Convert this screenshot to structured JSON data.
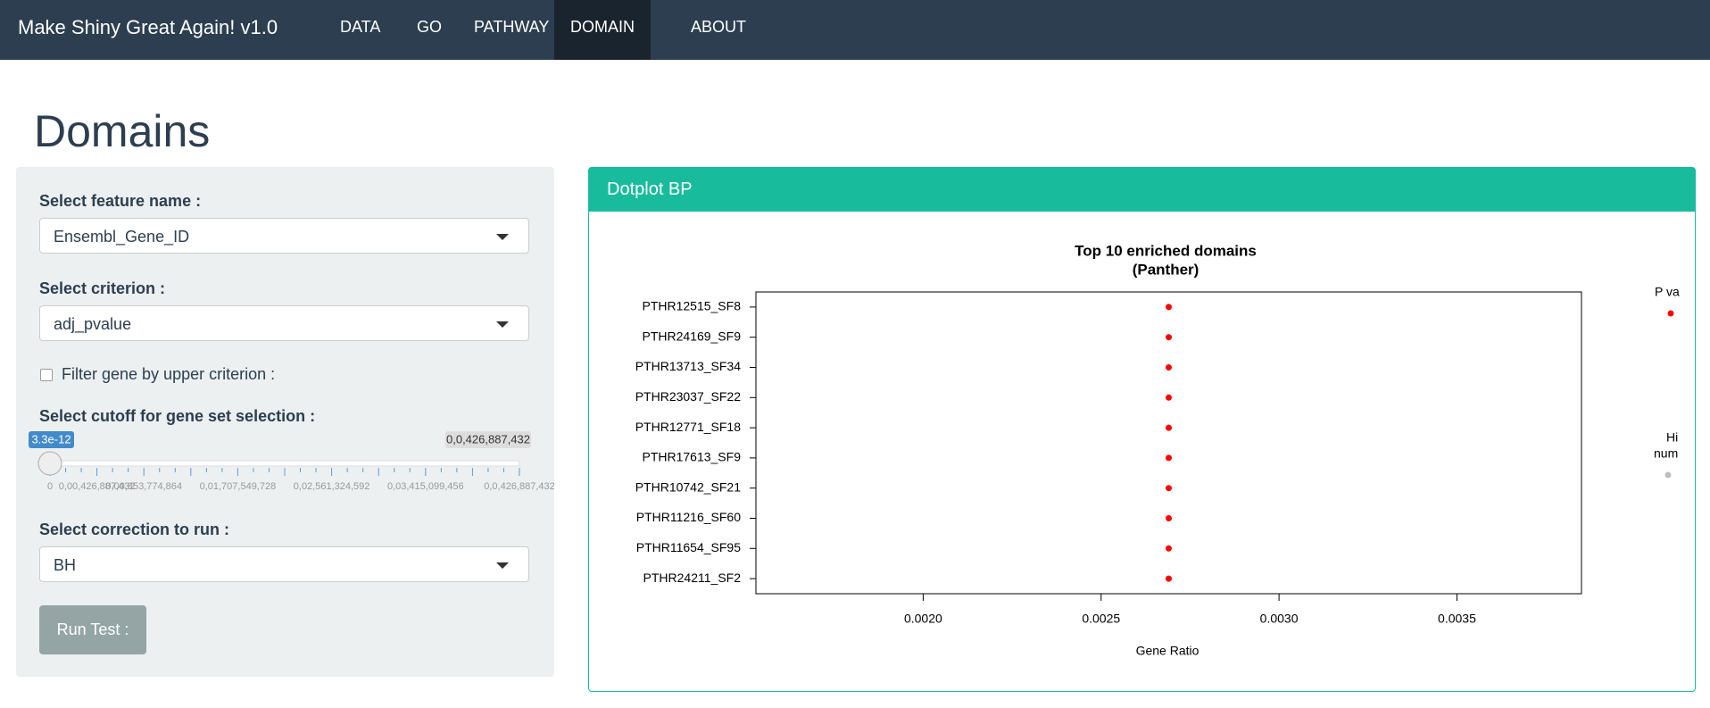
{
  "navbar": {
    "brand": "Make Shiny Great Again! v1.0",
    "items": [
      "DATA",
      "GO",
      "PATHWAY",
      "DOMAIN",
      "ABOUT"
    ],
    "active": "DOMAIN"
  },
  "heading": "Domains",
  "sidebar": {
    "feature_label": "Select feature name :",
    "feature_value": "Ensembl_Gene_ID",
    "criterion_label": "Select criterion :",
    "criterion_value": "adj_pvalue",
    "filter_label": "Filter gene by upper criterion :",
    "cutoff_label": "Select cutoff for gene set selection :",
    "slider": {
      "value_label": "3.3e-12",
      "max_label": "0,0,426,887,432",
      "tick_labels": [
        "0",
        "0,00,426,887,432",
        "0,00,853,774,864",
        "0,01,707,549,728",
        "0,02,561,324,592",
        "0,03,415,099,456",
        "0,0,426,887,432"
      ]
    },
    "correction_label": "Select correction to run :",
    "correction_value": "BH",
    "button": "Run Test :"
  },
  "panel_title": "Dotplot BP",
  "chart_data": {
    "type": "dot",
    "title": "Top 10 enriched domains",
    "subtitle": "(Panther)",
    "categories": [
      "PTHR12515_SF8",
      "PTHR24169_SF9",
      "PTHR13713_SF34",
      "PTHR23037_SF22",
      "PTHR12771_SF18",
      "PTHR17613_SF9",
      "PTHR10742_SF21",
      "PTHR11216_SF60",
      "PTHR11654_SF95",
      "PTHR24211_SF2"
    ],
    "values": [
      0.00269,
      0.00269,
      0.00269,
      0.00269,
      0.00269,
      0.00269,
      0.00269,
      0.00269,
      0.00269,
      0.00269
    ],
    "color": "#ff0000",
    "xlim": [
      0.00153,
      0.00385
    ],
    "xticks": [
      {
        "value": 0.002,
        "label": "0.0020"
      },
      {
        "value": 0.0025,
        "label": "0.0025"
      },
      {
        "value": 0.003,
        "label": "0.0030"
      },
      {
        "value": 0.0035,
        "label": "0.0035"
      }
    ],
    "x_label": "Gene Ratio",
    "legend": {
      "pvalue_title": "P va",
      "hits_title": [
        "Hi",
        "num"
      ]
    }
  }
}
